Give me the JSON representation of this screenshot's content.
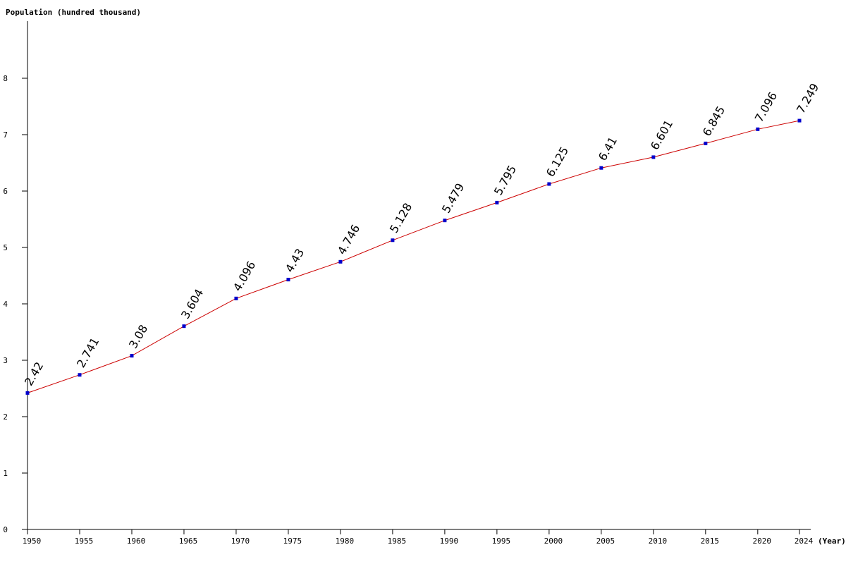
{
  "chart_data": {
    "type": "line",
    "ylabel": "Population (hundred thousand)",
    "xlabel": "(Year)",
    "ylim": [
      0,
      9
    ],
    "y_ticks": [
      0,
      1,
      2,
      3,
      4,
      5,
      6,
      7,
      8
    ],
    "x_ticks": [
      1950,
      1955,
      1960,
      1965,
      1970,
      1975,
      1980,
      1985,
      1990,
      1995,
      2000,
      2005,
      2010,
      2015,
      2020,
      2024
    ],
    "x_range": [
      1950,
      2024
    ],
    "grid": false,
    "legend": "none",
    "line_color": "#cc0000",
    "marker_color": "#0000cc",
    "series": [
      {
        "x": [
          1950,
          1955,
          1960,
          1965,
          1970,
          1975,
          1980,
          1985,
          1990,
          1995,
          2000,
          2005,
          2010,
          2015,
          2020,
          2024
        ],
        "values": [
          2.42,
          2.741,
          3.08,
          3.604,
          4.096,
          4.43,
          4.746,
          5.128,
          5.479,
          5.795,
          6.125,
          6.41,
          6.601,
          6.845,
          7.096,
          7.249
        ],
        "labels": [
          "2.42",
          "2.741",
          "3.08",
          "3.604",
          "4.096",
          "4.43",
          "4.746",
          "5.128",
          "5.479",
          "5.795",
          "6.125",
          "6.41",
          "6.601",
          "6.845",
          "7.096",
          "7.249"
        ]
      }
    ]
  }
}
